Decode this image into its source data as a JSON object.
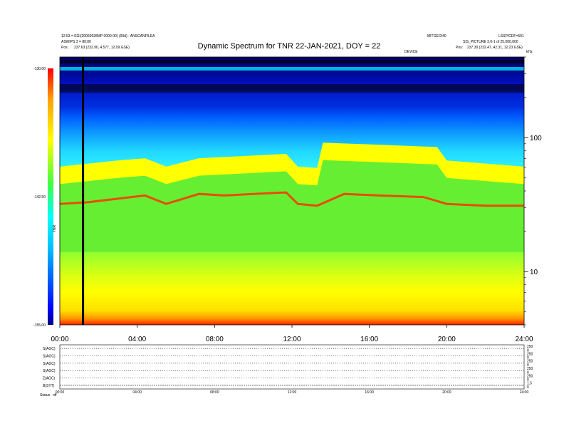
{
  "header": {
    "left_line1": "12:53 = EGI(20060928MP 0000-00) (00d) - ANSCANFILEA",
    "left_line2": "ASWIPS 3 = 80:00",
    "left_line3_label": "Pos:",
    "left_line3_value": "237.63 (232.90, 4.577, 12.09 GSE)",
    "right_line1_a": "MITGEO/40",
    "right_line1_b": "LSSP/CDF=501",
    "right_line2": "SIS_PICTURE 3.0-1 of 25,000,000",
    "right_line3_label": "Pos:",
    "right_line3_value": "237.30 (232.47, 42.31, 12.23 GSE)",
    "right_line4_a": "DEVICE",
    "right_line4_b": "kHz"
  },
  "chart_data": {
    "type": "heatmap",
    "title": "Dynamic Spectrum for TNR 22-JAN-2021, DOY = 22",
    "x_ticks": [
      "00:00",
      "04:00",
      "08:00",
      "12:00",
      "16:00",
      "20:00",
      "24:00"
    ],
    "x_range_hours": [
      0,
      24
    ],
    "y_scale": "log",
    "y_ticks": [
      "100",
      "10"
    ],
    "y_tick_values": [
      100,
      10
    ],
    "y_range_khz": [
      4,
      400
    ],
    "colorbar": {
      "label": "TNR",
      "ticks": [
        "-130.00",
        "-142.50",
        "-155.00"
      ],
      "range": [
        -155.0,
        -130.0
      ],
      "colors": [
        "#000080",
        "#0000ff",
        "#00c0ff",
        "#00ffff",
        "#40ff40",
        "#ffff00",
        "#ffa000",
        "#ff0000"
      ]
    },
    "vertical_marker_hour": 1.2,
    "peak_ridge_khz": [
      {
        "x": 0,
        "y": 32
      },
      {
        "x": 1.5,
        "y": 33
      },
      {
        "x": 3,
        "y": 35
      },
      {
        "x": 4.4,
        "y": 37
      },
      {
        "x": 5.5,
        "y": 32
      },
      {
        "x": 7.2,
        "y": 38
      },
      {
        "x": 8.5,
        "y": 37
      },
      {
        "x": 10,
        "y": 38
      },
      {
        "x": 11.7,
        "y": 39
      },
      {
        "x": 12.3,
        "y": 32
      },
      {
        "x": 13.3,
        "y": 31
      },
      {
        "x": 14.7,
        "y": 38
      },
      {
        "x": 16.5,
        "y": 37
      },
      {
        "x": 18.8,
        "y": 36
      },
      {
        "x": 20,
        "y": 32
      },
      {
        "x": 22,
        "y": 31
      },
      {
        "x": 24,
        "y": 31
      }
    ],
    "green_top_khz": [
      {
        "x": 0,
        "y": 45
      },
      {
        "x": 3,
        "y": 50
      },
      {
        "x": 4.4,
        "y": 52
      },
      {
        "x": 5.5,
        "y": 45
      },
      {
        "x": 7.2,
        "y": 52
      },
      {
        "x": 11.7,
        "y": 56
      },
      {
        "x": 12.3,
        "y": 45
      },
      {
        "x": 13.3,
        "y": 44
      },
      {
        "x": 13.6,
        "y": 68
      },
      {
        "x": 19.5,
        "y": 63
      },
      {
        "x": 20,
        "y": 50
      },
      {
        "x": 24,
        "y": 45
      }
    ]
  },
  "bottom_panel": {
    "rows": [
      {
        "label": "S(AGC)",
        "right_ticks": [
          "250",
          "0"
        ]
      },
      {
        "label": "S(AGC)",
        "right_ticks": [
          "250",
          "0"
        ]
      },
      {
        "label": "S(AGC)",
        "right_ticks": [
          "250",
          "0"
        ]
      },
      {
        "label": "S(AGC)",
        "right_ticks": [
          "250",
          "0"
        ]
      },
      {
        "label": "Z(AGC)",
        "right_ticks": [
          "250",
          "0"
        ]
      },
      {
        "label": "B(SYT)",
        "right_ticks": [
          "1.5",
          "0"
        ]
      }
    ],
    "x_ticks": [
      "00:00",
      "04:00",
      "08:00",
      "12:00",
      "16:00",
      "20:00",
      "24:00"
    ],
    "status_label": "Status",
    "status_value": "off"
  }
}
